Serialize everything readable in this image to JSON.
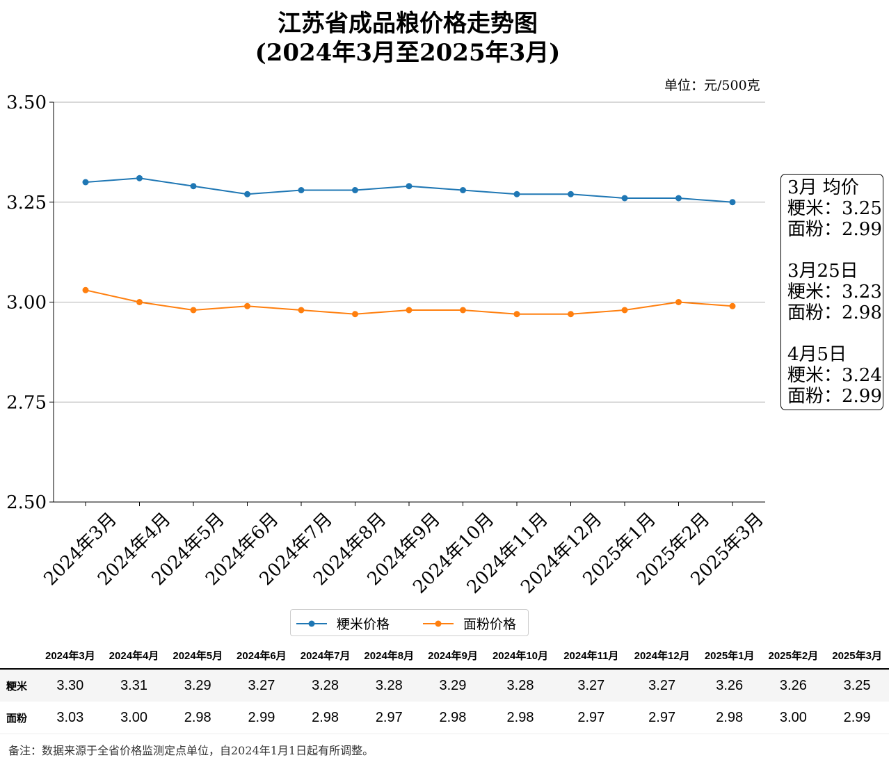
{
  "chart_data": {
    "type": "line",
    "title": "江苏省成品粮价格走势图",
    "subtitle": "(2024年3月至2025年3月)",
    "unit": "单位：元/500克",
    "categories": [
      "2024年3月",
      "2024年4月",
      "2024年5月",
      "2024年6月",
      "2024年7月",
      "2024年8月",
      "2024年9月",
      "2024年10月",
      "2024年11月",
      "2024年12月",
      "2025年1月",
      "2025年2月",
      "2025年3月"
    ],
    "ylim": [
      2.5,
      3.5
    ],
    "yticks": [
      "2.50",
      "2.75",
      "3.00",
      "3.25",
      "3.50"
    ],
    "grid": "horizontal",
    "legend_position": "bottom",
    "series": [
      {
        "name": "粳米价格",
        "color": "#1f77b4",
        "values": [
          3.3,
          3.31,
          3.29,
          3.27,
          3.28,
          3.28,
          3.29,
          3.28,
          3.27,
          3.27,
          3.26,
          3.26,
          3.25
        ]
      },
      {
        "name": "面粉价格",
        "color": "#ff7f0e",
        "values": [
          3.03,
          3.0,
          2.98,
          2.99,
          2.98,
          2.97,
          2.98,
          2.98,
          2.97,
          2.97,
          2.98,
          3.0,
          2.99
        ]
      }
    ]
  },
  "annotation": {
    "lines1": [
      "3月 均价",
      "粳米：3.25",
      "面粉：2.99"
    ],
    "lines2": [
      "3月25日",
      "粳米：3.23",
      "面粉：2.98"
    ],
    "lines3": [
      "4月5日",
      "粳米：3.24",
      "面粉：2.99"
    ]
  },
  "table": {
    "rows": [
      {
        "label": "粳米",
        "values": [
          "3.30",
          "3.31",
          "3.29",
          "3.27",
          "3.28",
          "3.28",
          "3.29",
          "3.28",
          "3.27",
          "3.27",
          "3.26",
          "3.26",
          "3.25"
        ]
      },
      {
        "label": "面粉",
        "values": [
          "3.03",
          "3.00",
          "2.98",
          "2.99",
          "2.98",
          "2.97",
          "2.98",
          "2.98",
          "2.97",
          "2.97",
          "2.98",
          "3.00",
          "2.99"
        ]
      }
    ]
  },
  "footnote": "备注：数据来源于全省价格监测定点单位，自2024年1月1日起有所调整。"
}
